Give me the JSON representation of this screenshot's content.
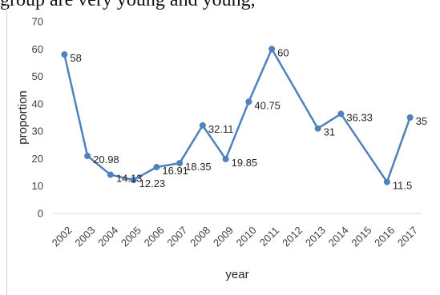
{
  "top_text": "group are very young and young,",
  "chart_data": {
    "type": "line",
    "title": "",
    "xlabel": "year",
    "ylabel": "proportion",
    "ylim": [
      0,
      70
    ],
    "yticks": [
      0,
      10,
      20,
      30,
      40,
      50,
      60,
      70
    ],
    "categories": [
      "2002",
      "2003",
      "2004",
      "2005",
      "2006",
      "2007",
      "2008",
      "2009",
      "2010",
      "2011",
      "2012",
      "2013",
      "2014",
      "2015",
      "2016",
      "2017"
    ],
    "points": [
      {
        "x": "2002",
        "y": 58,
        "label": "58"
      },
      {
        "x": "2003",
        "y": 20.98,
        "label": "20.98"
      },
      {
        "x": "2004",
        "y": 14.13,
        "label": "14.13"
      },
      {
        "x": "2005",
        "y": 12.23,
        "label": "12.23"
      },
      {
        "x": "2006",
        "y": 16.91,
        "label": "16.91"
      },
      {
        "x": "2007",
        "y": 18.35,
        "label": "18.35"
      },
      {
        "x": "2008",
        "y": 32.11,
        "label": "32.11"
      },
      {
        "x": "2009",
        "y": 19.85,
        "label": "19.85"
      },
      {
        "x": "2010",
        "y": 40.75,
        "label": "40.75"
      },
      {
        "x": "2011",
        "y": 60,
        "label": "60"
      },
      {
        "x": "2013",
        "y": 31,
        "label": "31"
      },
      {
        "x": "2014",
        "y": 36.33,
        "label": "36.33"
      },
      {
        "x": "2016",
        "y": 11.5,
        "label": "11.5"
      },
      {
        "x": "2017",
        "y": 35,
        "label": "35"
      }
    ],
    "line_color": "#4f81bd",
    "grid": false,
    "legend": "none"
  }
}
